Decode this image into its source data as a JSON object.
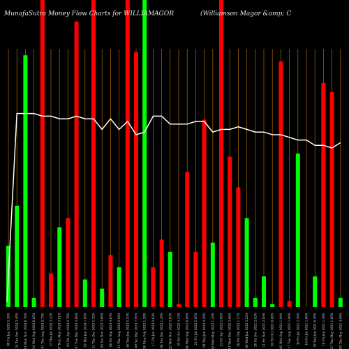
{
  "chart_data": {
    "type": "bar",
    "title_left": "MunafaSutra  Money Flow  Charts for WILLIAMAGOR",
    "title_right": "(Williamson  Magor &amp; C",
    "colors": {
      "up": "#00ff00",
      "down": "#ff0000",
      "line": "#ffffff",
      "grid": "#b36b00",
      "background": "#000000"
    },
    "categories": [
      "09 Fri Jan 2025 5.38%",
      "24 Tue Dec 2024 2.40%",
      "14 Mon Nov 2024 0.76%",
      "24 Wed Sep 2024 0.85%",
      "01 Thu Aug 2024 2.75%",
      "15 Thu Jul 2024 3.22%",
      "27 Mon May 2024 3.61%",
      "02 Fri Apr 2024 2.70%",
      "07 Tue Mar 2024 3.06%",
      "19 Thu Jan 2024 1.69%",
      "21 Thu Dec 2023 5.32%",
      "04 Sat Nov 2023 3.66%",
      "08 Fri Sep 2023 4.63%",
      "24 Thu Aug 2023 2.98%",
      "06 Tue Jun 2023 5.53%",
      "09 Sat Mar 2023 7.91%",
      "20 Mon Feb 2023 1.39%",
      "17 Fri Jan 2023 4.62%",
      "06 Tue Dec 2022 1.29%",
      "25 Wed Nov 2022 3.03%",
      "10 Fri Oct 2022 4.12%",
      "06 Wed Sep 2022 0.86%",
      "21 Fri Jul 2022 5.05%",
      "09 Thu Jun 2022 4.59%",
      "18 Wed May 2022 1.24%",
      "22 Fri Apr 2022 2.08%",
      "14 Wed Mar 2022 3.66%",
      "28 Fri Feb 2022 1.57%",
      "04 Wed Jan 2022 3.22%",
      "20 Fri Dec 2021 2.62%",
      "11 Fri Nov 2021 2.85%",
      "20 Fri Oct 2021 0.80%",
      "02 Wed Sep 2021 1.94%",
      "17 Tue Aug 2021 1.96%",
      "30 Fri Jul 2021 2.59%",
      "16 Fri Jul 2021 1.86%",
      "29 Tue Jun 2021 6.30%",
      "18 Fri Jun 2021 1.58%",
      "27 Thu May 2021 1.89%",
      "05 Thu May 2021 4.96%"
    ],
    "values": [
      0.2,
      0.33,
      0.82,
      0.03,
      1.0,
      0.11,
      0.26,
      0.29,
      0.93,
      0.09,
      1.0,
      0.06,
      0.17,
      0.13,
      1.0,
      0.83,
      1.0,
      0.13,
      0.22,
      0.18,
      0.01,
      0.44,
      0.18,
      0.61,
      0.21,
      1.0,
      0.49,
      0.39,
      0.29,
      0.03,
      0.1,
      0.01,
      0.8,
      0.02,
      0.5,
      0.0,
      0.1,
      0.73,
      0.7,
      0.03
    ],
    "directions": [
      "up",
      "up",
      "up",
      "up",
      "down",
      "down",
      "up",
      "down",
      "down",
      "up",
      "down",
      "up",
      "down",
      "up",
      "down",
      "down",
      "up",
      "down",
      "down",
      "up",
      "down",
      "down",
      "down",
      "down",
      "up",
      "down",
      "down",
      "down",
      "up",
      "up",
      "up",
      "up",
      "down",
      "down",
      "up",
      "down",
      "up",
      "down",
      "down",
      "up"
    ],
    "line": [
      0.02,
      0.73,
      0.73,
      0.73,
      0.72,
      0.72,
      0.71,
      0.71,
      0.72,
      0.71,
      0.71,
      0.67,
      0.71,
      0.67,
      0.7,
      0.65,
      0.66,
      0.72,
      0.72,
      0.69,
      0.69,
      0.69,
      0.7,
      0.7,
      0.66,
      0.67,
      0.67,
      0.68,
      0.67,
      0.66,
      0.66,
      0.65,
      0.65,
      0.64,
      0.63,
      0.63,
      0.61,
      0.61,
      0.6,
      0.62
    ]
  }
}
